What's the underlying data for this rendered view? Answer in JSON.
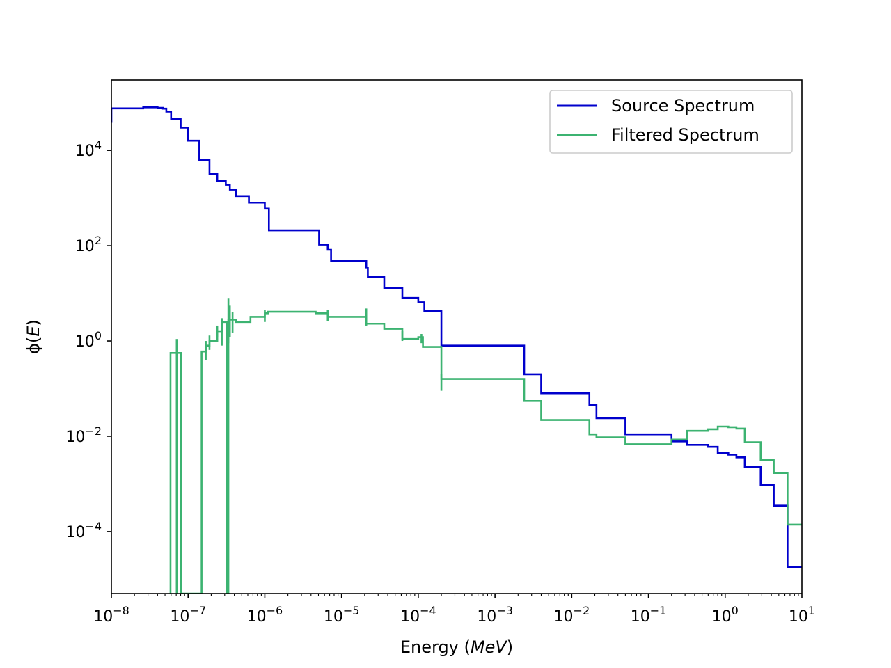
{
  "chart_data": {
    "type": "line",
    "drawstyle": "steps",
    "xlabel": {
      "text": "Energy (",
      "italic": "MeV",
      "suffix": ")"
    },
    "ylabel": {
      "text": "ϕ(",
      "italic": "E",
      "suffix": ")"
    },
    "x_scale": "log",
    "y_scale": "log",
    "xlim": [
      1e-08,
      10
    ],
    "ylim": [
      5e-06,
      300000.0
    ],
    "x_ticks": [
      {
        "value": 1e-08,
        "base": "10",
        "exp": "−8"
      },
      {
        "value": 1e-07,
        "base": "10",
        "exp": "−7"
      },
      {
        "value": 1e-06,
        "base": "10",
        "exp": "−6"
      },
      {
        "value": 1e-05,
        "base": "10",
        "exp": "−5"
      },
      {
        "value": 0.0001,
        "base": "10",
        "exp": "−4"
      },
      {
        "value": 0.001,
        "base": "10",
        "exp": "−3"
      },
      {
        "value": 0.01,
        "base": "10",
        "exp": "−2"
      },
      {
        "value": 0.1,
        "base": "10",
        "exp": "−1"
      },
      {
        "value": 1,
        "base": "10",
        "exp": "0"
      },
      {
        "value": 10,
        "base": "10",
        "exp": "1"
      }
    ],
    "y_ticks": [
      {
        "value": 0.0001,
        "base": "10",
        "exp": "−4"
      },
      {
        "value": 0.01,
        "base": "10",
        "exp": "−2"
      },
      {
        "value": 1,
        "base": "10",
        "exp": "0"
      },
      {
        "value": 100,
        "base": "10",
        "exp": "2"
      },
      {
        "value": 10000,
        "base": "10",
        "exp": "4"
      }
    ],
    "grid": false,
    "legend_position": "top-right",
    "series": [
      {
        "name": "Source Spectrum",
        "color": "#0000cc",
        "points": [
          [
            1e-08,
            38000.0
          ],
          [
            1e-08,
            76000.0
          ],
          [
            2.6e-08,
            76000.0
          ],
          [
            2.6e-08,
            80000.0
          ],
          [
            4e-08,
            80000.0
          ],
          [
            4e-08,
            78000.0
          ],
          [
            4.7e-08,
            78000.0
          ],
          [
            4.7e-08,
            75000.0
          ],
          [
            5.2e-08,
            75000.0
          ],
          [
            5.2e-08,
            65000.0
          ],
          [
            6e-08,
            65000.0
          ],
          [
            6e-08,
            46000.0
          ],
          [
            8e-08,
            46000.0
          ],
          [
            8e-08,
            30000.0
          ],
          [
            1e-07,
            30000.0
          ],
          [
            1e-07,
            16000.0
          ],
          [
            1.4e-07,
            16000.0
          ],
          [
            1.4e-07,
            6300.0
          ],
          [
            1.9e-07,
            6300.0
          ],
          [
            1.9e-07,
            3200.0
          ],
          [
            2.4e-07,
            3200.0
          ],
          [
            2.4e-07,
            2300.0
          ],
          [
            3.1e-07,
            2300.0
          ],
          [
            3.1e-07,
            1900.0
          ],
          [
            3.5e-07,
            1900.0
          ],
          [
            3.5e-07,
            1500.0
          ],
          [
            4.2e-07,
            1500.0
          ],
          [
            4.2e-07,
            1100.0
          ],
          [
            6.2e-07,
            1100.0
          ],
          [
            6.2e-07,
            800
          ],
          [
            1e-06,
            800
          ],
          [
            1e-06,
            600
          ],
          [
            1.13e-06,
            600
          ],
          [
            1.13e-06,
            210
          ],
          [
            5.1e-06,
            210
          ],
          [
            5.1e-06,
            105
          ],
          [
            6.6e-06,
            105
          ],
          [
            6.6e-06,
            82
          ],
          [
            7.3e-06,
            82
          ],
          [
            7.3e-06,
            48
          ],
          [
            2.1e-05,
            48
          ],
          [
            2.1e-05,
            35
          ],
          [
            2.2e-05,
            35
          ],
          [
            2.2e-05,
            22
          ],
          [
            3.6e-05,
            22
          ],
          [
            3.6e-05,
            13
          ],
          [
            6.2e-05,
            13
          ],
          [
            6.2e-05,
            8
          ],
          [
            0.0001,
            8
          ],
          [
            0.0001,
            6.5
          ],
          [
            0.00012,
            6.5
          ],
          [
            0.00012,
            4.2
          ],
          [
            0.0002,
            4.2
          ],
          [
            0.0002,
            0.8
          ],
          [
            0.0024,
            0.8
          ],
          [
            0.0024,
            0.2
          ],
          [
            0.004,
            0.2
          ],
          [
            0.004,
            0.08
          ],
          [
            0.017,
            0.08
          ],
          [
            0.017,
            0.045
          ],
          [
            0.021,
            0.045
          ],
          [
            0.021,
            0.024
          ],
          [
            0.05,
            0.024
          ],
          [
            0.05,
            0.011
          ],
          [
            0.2,
            0.011
          ],
          [
            0.2,
            0.0078
          ],
          [
            0.32,
            0.0078
          ],
          [
            0.32,
            0.0066
          ],
          [
            0.6,
            0.0066
          ],
          [
            0.6,
            0.006
          ],
          [
            0.8,
            0.006
          ],
          [
            0.8,
            0.0045
          ],
          [
            1.1,
            0.0045
          ],
          [
            1.1,
            0.0041
          ],
          [
            1.4,
            0.0041
          ],
          [
            1.4,
            0.0036
          ],
          [
            1.8,
            0.0036
          ],
          [
            1.8,
            0.0023
          ],
          [
            2.9,
            0.0023
          ],
          [
            2.9,
            0.00095
          ],
          [
            4.3,
            0.00095
          ],
          [
            4.3,
            0.00035
          ],
          [
            6.5,
            0.00035
          ],
          [
            6.5,
            1.8e-05
          ],
          [
            10,
            1.8e-05
          ]
        ]
      },
      {
        "name": "Filtered Spectrum",
        "color": "#3cb371",
        "points": [
          [
            5.9e-08,
            5e-06
          ],
          [
            5.9e-08,
            0.56
          ],
          [
            7.1e-08,
            0.56
          ],
          [
            7.1e-08,
            1e-06
          ],
          [
            7.1e-08,
            0.56
          ],
          [
            8.1e-08,
            0.56
          ],
          [
            8.1e-08,
            5e-06
          ],
          [
            1.5e-07,
            5e-06
          ],
          [
            1.5e-07,
            0.6
          ],
          [
            1.7e-07,
            0.6
          ],
          [
            1.7e-07,
            0.8
          ],
          [
            1.9e-07,
            0.8
          ],
          [
            1.9e-07,
            1
          ],
          [
            2.4e-07,
            1
          ],
          [
            2.4e-07,
            1.6
          ],
          [
            2.75e-07,
            1.6
          ],
          [
            2.75e-07,
            2.5
          ],
          [
            3.2e-07,
            2.5
          ],
          [
            3.2e-07,
            5e-06
          ],
          [
            3.35e-07,
            5e-06
          ],
          [
            3.35e-07,
            2.8
          ],
          [
            4.2e-07,
            2.8
          ],
          [
            4.2e-07,
            2.5
          ],
          [
            6.5e-07,
            2.5
          ],
          [
            6.5e-07,
            3.2
          ],
          [
            1e-06,
            3.2
          ],
          [
            1e-06,
            3.8
          ],
          [
            1.1e-06,
            3.8
          ],
          [
            1.1e-06,
            4.1
          ],
          [
            4.6e-06,
            4.1
          ],
          [
            4.6e-06,
            3.8
          ],
          [
            6.6e-06,
            3.8
          ],
          [
            6.6e-06,
            3.2
          ],
          [
            2.1e-05,
            3.2
          ],
          [
            2.1e-05,
            2.3
          ],
          [
            3.6e-05,
            2.3
          ],
          [
            3.6e-05,
            1.8
          ],
          [
            6.2e-05,
            1.8
          ],
          [
            6.2e-05,
            1.1
          ],
          [
            0.0001,
            1.1
          ],
          [
            0.0001,
            1.2
          ],
          [
            0.000115,
            1.2
          ],
          [
            0.000115,
            0.75
          ],
          [
            0.0002,
            0.75
          ],
          [
            0.0002,
            0.16
          ],
          [
            0.0024,
            0.16
          ],
          [
            0.0024,
            0.055
          ],
          [
            0.004,
            0.055
          ],
          [
            0.004,
            0.022
          ],
          [
            0.017,
            0.022
          ],
          [
            0.017,
            0.011
          ],
          [
            0.021,
            0.011
          ],
          [
            0.021,
            0.0095
          ],
          [
            0.05,
            0.0095
          ],
          [
            0.05,
            0.0068
          ],
          [
            0.2,
            0.0068
          ],
          [
            0.2,
            0.0085
          ],
          [
            0.32,
            0.0085
          ],
          [
            0.32,
            0.013
          ],
          [
            0.6,
            0.013
          ],
          [
            0.6,
            0.014
          ],
          [
            0.8,
            0.014
          ],
          [
            0.8,
            0.016
          ],
          [
            1.1,
            0.016
          ],
          [
            1.1,
            0.0155
          ],
          [
            1.4,
            0.0155
          ],
          [
            1.4,
            0.0145
          ],
          [
            1.8,
            0.0145
          ],
          [
            1.8,
            0.0075
          ],
          [
            2.9,
            0.0075
          ],
          [
            2.9,
            0.0032
          ],
          [
            4.3,
            0.0032
          ],
          [
            4.3,
            0.0017
          ],
          [
            6.5,
            0.0017
          ],
          [
            6.5,
            0.00014
          ],
          [
            10,
            0.00014
          ]
        ],
        "error_bars": [
          [
            7.1e-08,
            0.4,
            1.1
          ],
          [
            1.7e-07,
            0.4,
            1.0
          ],
          [
            1.9e-07,
            0.65,
            1.3
          ],
          [
            2.4e-07,
            1.2,
            2.1
          ],
          [
            2.75e-07,
            0.8,
            3.0
          ],
          [
            3.35e-07,
            0.9,
            8
          ],
          [
            3.5e-07,
            1.2,
            5.5
          ],
          [
            3.8e-07,
            1.5,
            4.0
          ],
          [
            1e-06,
            2.5,
            4.5
          ],
          [
            6.6e-06,
            2.6,
            4.5
          ],
          [
            2.1e-05,
            2.1,
            4.8
          ],
          [
            6.2e-05,
            1.0,
            1.6
          ],
          [
            0.00011,
            0.9,
            1.4
          ],
          [
            0.0002,
            0.09,
            0.2
          ]
        ]
      }
    ]
  }
}
